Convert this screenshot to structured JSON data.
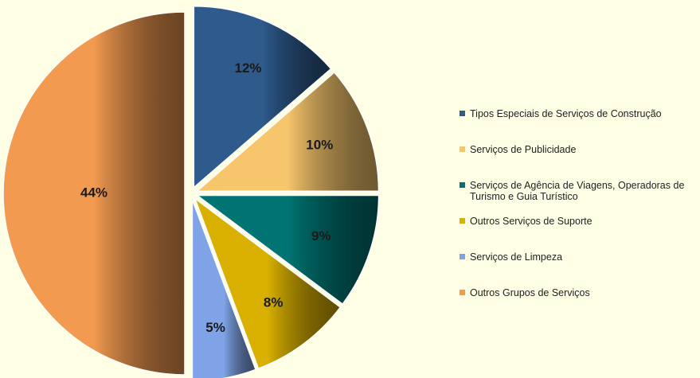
{
  "chart_data": {
    "type": "pie",
    "categories": [
      "Tipos Especiais de Serviços de Construção",
      "Serviços de Publicidade",
      "Serviços de Agência de Viagens, Operadoras de Turismo e Guia Turístico",
      "Outros Serviços de Suporte",
      "Serviços de Limpeza",
      "Outros Grupos de Serviços"
    ],
    "values": [
      12,
      10,
      9,
      8,
      5,
      44
    ],
    "value_labels": [
      "12%",
      "10%",
      "9%",
      "8%",
      "5%",
      "44%"
    ],
    "colors": [
      "#2e5a8c",
      "#f6c56c",
      "#007472",
      "#d9b000",
      "#7fa3e6",
      "#f29a50"
    ],
    "legend": "right"
  }
}
